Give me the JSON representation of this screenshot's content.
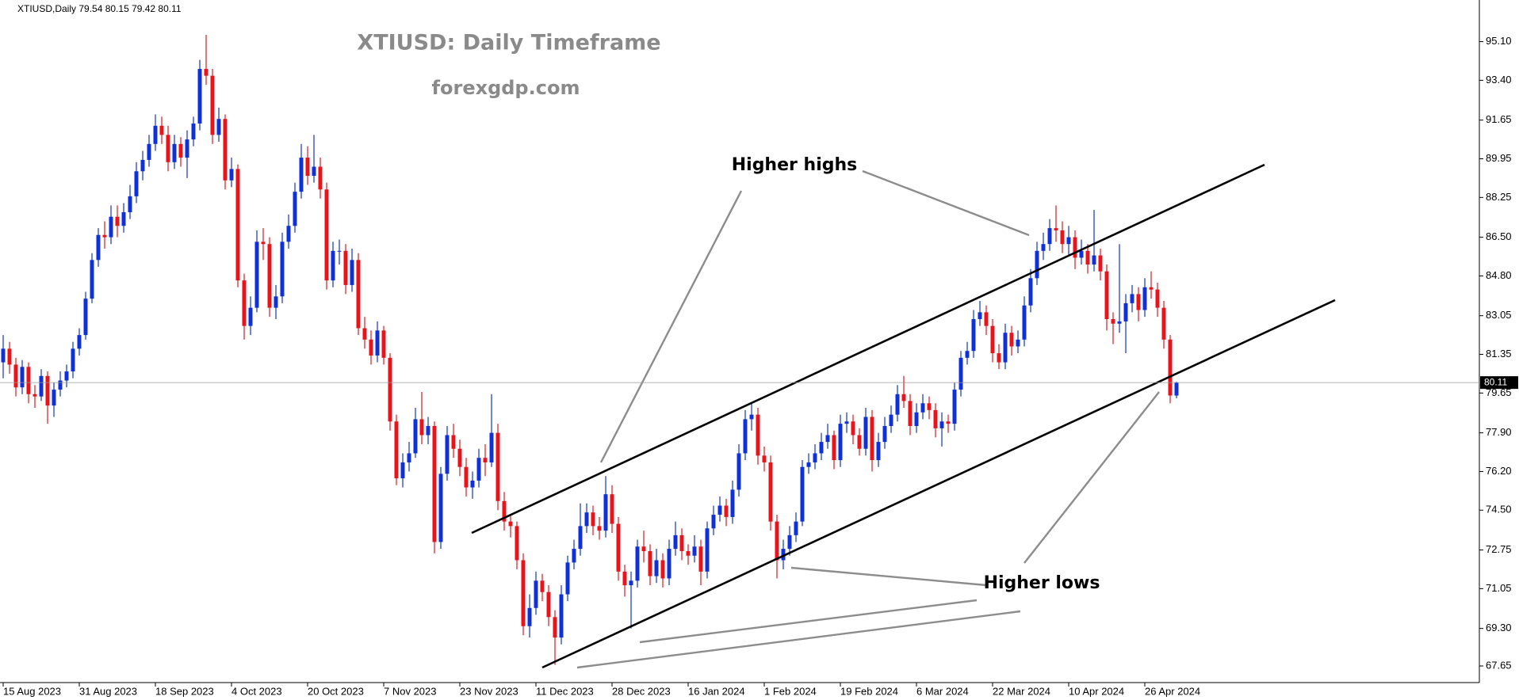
{
  "chart_data": {
    "type": "candlestick",
    "header": "XTIUSD,Daily  79.54 80.15 79.42 80.11",
    "title": "XTIUSD: Daily Timeframe",
    "subtitle": "forexgdp.com",
    "annotations": [
      "Higher highs",
      "Higher lows"
    ],
    "up_color": "#1030d8",
    "down_color": "#e8141b",
    "current_price": 80.11,
    "ylim": [
      66.92,
      96.93
    ],
    "yticks": [
      {
        "value": 95.1,
        "label": "95.10"
      },
      {
        "value": 93.4,
        "label": "93.40"
      },
      {
        "value": 91.65,
        "label": "91.65"
      },
      {
        "value": 89.95,
        "label": "89.95"
      },
      {
        "value": 88.25,
        "label": "88.25"
      },
      {
        "value": 86.5,
        "label": "86.50"
      },
      {
        "value": 84.8,
        "label": "84.80"
      },
      {
        "value": 83.05,
        "label": "83.05"
      },
      {
        "value": 81.35,
        "label": "81.35"
      },
      {
        "value": 79.65,
        "label": "79.65"
      },
      {
        "value": 77.9,
        "label": "77.90"
      },
      {
        "value": 76.2,
        "label": "76.20"
      },
      {
        "value": 74.5,
        "label": "74.50"
      },
      {
        "value": 72.75,
        "label": "72.75"
      },
      {
        "value": 71.05,
        "label": "71.05"
      },
      {
        "value": 69.3,
        "label": "69.30"
      },
      {
        "value": 67.65,
        "label": "67.65"
      }
    ],
    "categories": [
      "15 Aug 2023",
      null,
      null,
      null,
      null,
      null,
      null,
      null,
      null,
      null,
      null,
      null,
      "31 Aug 2023",
      null,
      null,
      null,
      null,
      null,
      null,
      null,
      null,
      null,
      null,
      null,
      "18 Sep 2023",
      null,
      null,
      null,
      null,
      null,
      null,
      null,
      null,
      null,
      null,
      null,
      "4 Oct 2023",
      null,
      null,
      null,
      null,
      null,
      null,
      null,
      null,
      null,
      null,
      null,
      "20 Oct 2023",
      null,
      null,
      null,
      null,
      null,
      null,
      null,
      null,
      null,
      null,
      null,
      "7 Nov 2023",
      null,
      null,
      null,
      null,
      null,
      null,
      null,
      null,
      null,
      null,
      null,
      "23 Nov 2023",
      null,
      null,
      null,
      null,
      null,
      null,
      null,
      null,
      null,
      null,
      null,
      "11 Dec 2023",
      null,
      null,
      null,
      null,
      null,
      null,
      null,
      null,
      null,
      null,
      null,
      "28 Dec 2023",
      null,
      null,
      null,
      null,
      null,
      null,
      null,
      null,
      null,
      null,
      null,
      "16 Jan 2024",
      null,
      null,
      null,
      null,
      null,
      null,
      null,
      null,
      null,
      null,
      null,
      "1 Feb 2024",
      null,
      null,
      null,
      null,
      null,
      null,
      null,
      null,
      null,
      null,
      null,
      "19 Feb 2024",
      null,
      null,
      null,
      null,
      null,
      null,
      null,
      null,
      null,
      null,
      null,
      "6 Mar 2024",
      null,
      null,
      null,
      null,
      null,
      null,
      null,
      null,
      null,
      null,
      null,
      "22 Mar 2024",
      null,
      null,
      null,
      null,
      null,
      null,
      null,
      null,
      null,
      null,
      null,
      "10 Apr 2024",
      null,
      null,
      null,
      null,
      null,
      null,
      null,
      null,
      null,
      null,
      null,
      "26 Apr 2024",
      null,
      null,
      null,
      null,
      null
    ],
    "ohlc": [
      [
        81.0,
        82.2,
        80.3,
        81.6
      ],
      [
        81.6,
        81.9,
        80.5,
        80.9
      ],
      [
        80.9,
        81.2,
        79.5,
        79.9
      ],
      [
        79.9,
        81.1,
        79.6,
        80.8
      ],
      [
        80.8,
        81.0,
        79.2,
        79.6
      ],
      [
        79.6,
        80.0,
        79.0,
        79.5
      ],
      [
        79.5,
        80.7,
        79.3,
        80.4
      ],
      [
        80.4,
        80.6,
        78.3,
        79.1
      ],
      [
        79.1,
        80.1,
        78.6,
        79.8
      ],
      [
        79.8,
        80.6,
        79.5,
        80.2
      ],
      [
        80.2,
        80.9,
        79.9,
        80.6
      ],
      [
        80.6,
        81.9,
        80.3,
        81.6
      ],
      [
        81.6,
        82.5,
        81.3,
        82.2
      ],
      [
        82.2,
        84.1,
        82.0,
        83.8
      ],
      [
        83.8,
        85.8,
        83.6,
        85.5
      ],
      [
        85.5,
        86.9,
        85.2,
        86.6
      ],
      [
        86.6,
        87.2,
        86.0,
        86.5
      ],
      [
        86.5,
        87.9,
        86.2,
        87.4
      ],
      [
        87.4,
        87.9,
        86.5,
        87.0
      ],
      [
        87.0,
        88.0,
        86.7,
        87.6
      ],
      [
        87.6,
        88.8,
        87.3,
        88.3
      ],
      [
        88.3,
        89.8,
        88.0,
        89.4
      ],
      [
        89.4,
        90.3,
        89.0,
        89.9
      ],
      [
        89.9,
        91.0,
        89.6,
        90.6
      ],
      [
        90.6,
        91.9,
        90.3,
        91.4
      ],
      [
        91.4,
        91.8,
        90.6,
        91.0
      ],
      [
        91.0,
        91.4,
        89.4,
        89.8
      ],
      [
        89.8,
        91.0,
        89.5,
        90.6
      ],
      [
        90.6,
        90.9,
        89.6,
        90.0
      ],
      [
        90.0,
        91.2,
        89.1,
        90.8
      ],
      [
        90.8,
        91.8,
        90.5,
        91.5
      ],
      [
        91.5,
        94.3,
        91.2,
        93.9
      ],
      [
        93.9,
        95.4,
        93.2,
        93.6
      ],
      [
        93.6,
        93.9,
        90.6,
        91.0
      ],
      [
        91.0,
        92.2,
        90.7,
        91.7
      ],
      [
        91.7,
        91.9,
        88.6,
        89.0
      ],
      [
        89.0,
        90.0,
        88.7,
        89.5
      ],
      [
        89.5,
        89.7,
        84.3,
        84.6
      ],
      [
        84.6,
        84.9,
        82.0,
        82.6
      ],
      [
        82.6,
        83.9,
        82.2,
        83.4
      ],
      [
        83.4,
        86.8,
        83.2,
        86.3
      ],
      [
        86.3,
        86.9,
        85.5,
        86.2
      ],
      [
        86.2,
        86.5,
        83.0,
        83.4
      ],
      [
        83.4,
        84.4,
        82.9,
        83.9
      ],
      [
        83.9,
        86.7,
        83.6,
        86.3
      ],
      [
        86.3,
        87.5,
        86.0,
        87.0
      ],
      [
        87.0,
        88.9,
        86.7,
        88.5
      ],
      [
        88.5,
        90.6,
        88.2,
        90.0
      ],
      [
        90.0,
        90.5,
        88.8,
        89.2
      ],
      [
        89.2,
        91.0,
        88.9,
        89.6
      ],
      [
        89.6,
        90.0,
        88.2,
        88.6
      ],
      [
        88.6,
        88.9,
        84.2,
        84.6
      ],
      [
        84.6,
        86.3,
        84.3,
        85.9
      ],
      [
        85.9,
        86.4,
        85.3,
        85.9
      ],
      [
        85.9,
        86.2,
        84.0,
        84.4
      ],
      [
        84.4,
        86.0,
        84.1,
        85.5
      ],
      [
        85.5,
        85.8,
        82.2,
        82.5
      ],
      [
        82.5,
        83.0,
        81.6,
        82.0
      ],
      [
        82.0,
        82.4,
        80.9,
        81.3
      ],
      [
        81.3,
        82.8,
        81.0,
        82.4
      ],
      [
        82.4,
        82.6,
        80.9,
        81.2
      ],
      [
        81.2,
        81.4,
        78.0,
        78.4
      ],
      [
        78.4,
        78.7,
        75.6,
        75.9
      ],
      [
        75.9,
        77.0,
        75.5,
        76.6
      ],
      [
        76.6,
        77.5,
        76.2,
        77.0
      ],
      [
        77.0,
        79.0,
        76.8,
        78.5
      ],
      [
        78.5,
        79.7,
        77.4,
        77.8
      ],
      [
        77.8,
        78.6,
        77.4,
        78.2
      ],
      [
        78.2,
        78.4,
        72.6,
        73.1
      ],
      [
        73.1,
        76.4,
        72.8,
        76.1
      ],
      [
        76.1,
        78.2,
        75.8,
        77.8
      ],
      [
        77.8,
        78.3,
        76.8,
        77.2
      ],
      [
        77.2,
        77.6,
        76.0,
        76.4
      ],
      [
        76.4,
        76.8,
        75.1,
        75.5
      ],
      [
        75.5,
        76.2,
        75.0,
        75.8
      ],
      [
        75.8,
        77.2,
        75.5,
        76.8
      ],
      [
        76.8,
        77.4,
        76.0,
        76.6
      ],
      [
        76.6,
        79.6,
        76.4,
        77.9
      ],
      [
        77.9,
        78.3,
        74.5,
        74.9
      ],
      [
        74.9,
        75.3,
        73.6,
        74.0
      ],
      [
        74.0,
        74.3,
        73.3,
        73.8
      ],
      [
        73.8,
        74.0,
        71.9,
        72.3
      ],
      [
        72.3,
        72.6,
        69.0,
        69.4
      ],
      [
        69.4,
        70.8,
        68.9,
        70.2
      ],
      [
        70.2,
        71.8,
        69.9,
        71.4
      ],
      [
        71.4,
        71.7,
        70.5,
        70.9
      ],
      [
        70.9,
        71.2,
        69.4,
        69.8
      ],
      [
        69.8,
        70.1,
        67.7,
        68.9
      ],
      [
        68.9,
        71.2,
        68.6,
        70.8
      ],
      [
        70.8,
        72.5,
        70.5,
        72.2
      ],
      [
        72.2,
        73.2,
        71.9,
        72.8
      ],
      [
        72.8,
        74.8,
        72.5,
        73.8
      ],
      [
        73.8,
        74.8,
        73.5,
        74.4
      ],
      [
        74.4,
        74.7,
        73.4,
        73.8
      ],
      [
        73.8,
        74.2,
        73.2,
        73.6
      ],
      [
        73.6,
        76.0,
        73.3,
        75.2
      ],
      [
        75.2,
        75.6,
        73.5,
        73.9
      ],
      [
        73.9,
        74.2,
        71.4,
        71.8
      ],
      [
        71.8,
        72.1,
        70.7,
        71.2
      ],
      [
        71.2,
        71.8,
        69.3,
        71.4
      ],
      [
        71.4,
        73.2,
        71.1,
        72.9
      ],
      [
        72.9,
        73.6,
        72.2,
        72.7
      ],
      [
        72.7,
        73.0,
        71.2,
        71.6
      ],
      [
        71.6,
        72.8,
        71.3,
        72.3
      ],
      [
        72.3,
        72.6,
        71.1,
        71.5
      ],
      [
        71.5,
        73.2,
        71.2,
        72.8
      ],
      [
        72.8,
        74.0,
        72.5,
        73.4
      ],
      [
        73.4,
        73.7,
        72.3,
        72.7
      ],
      [
        72.7,
        73.0,
        72.1,
        72.5
      ],
      [
        72.5,
        73.4,
        72.2,
        72.9
      ],
      [
        72.9,
        73.2,
        71.2,
        71.8
      ],
      [
        71.8,
        74.0,
        71.5,
        73.7
      ],
      [
        73.7,
        74.7,
        73.4,
        74.3
      ],
      [
        74.3,
        75.1,
        74.0,
        74.7
      ],
      [
        74.7,
        75.0,
        73.8,
        74.2
      ],
      [
        74.2,
        75.8,
        73.9,
        75.4
      ],
      [
        75.4,
        77.4,
        75.1,
        77.0
      ],
      [
        77.0,
        78.9,
        76.7,
        78.5
      ],
      [
        78.5,
        79.2,
        78.0,
        78.7
      ],
      [
        78.7,
        79.0,
        76.5,
        76.9
      ],
      [
        76.9,
        77.3,
        76.2,
        76.6
      ],
      [
        76.6,
        76.9,
        73.6,
        74.0
      ],
      [
        74.0,
        74.3,
        71.5,
        72.3
      ],
      [
        72.3,
        73.2,
        71.9,
        72.8
      ],
      [
        72.8,
        73.8,
        72.5,
        73.4
      ],
      [
        73.4,
        74.4,
        73.1,
        74.0
      ],
      [
        74.0,
        76.7,
        73.8,
        76.4
      ],
      [
        76.4,
        77.0,
        76.1,
        76.6
      ],
      [
        76.6,
        77.4,
        76.3,
        77.0
      ],
      [
        77.0,
        77.9,
        76.7,
        77.5
      ],
      [
        77.5,
        78.3,
        77.2,
        77.8
      ],
      [
        77.8,
        78.0,
        76.3,
        76.7
      ],
      [
        76.7,
        78.7,
        76.4,
        78.3
      ],
      [
        78.3,
        78.8,
        77.9,
        78.4
      ],
      [
        78.4,
        78.7,
        77.4,
        77.8
      ],
      [
        77.8,
        78.1,
        76.9,
        77.2
      ],
      [
        77.2,
        79.0,
        76.9,
        78.6
      ],
      [
        78.6,
        78.9,
        76.2,
        76.7
      ],
      [
        76.7,
        77.9,
        76.4,
        77.5
      ],
      [
        77.5,
        78.6,
        77.2,
        78.2
      ],
      [
        78.2,
        79.1,
        77.9,
        78.7
      ],
      [
        78.7,
        80.0,
        78.4,
        79.6
      ],
      [
        79.6,
        80.4,
        79.0,
        79.3
      ],
      [
        79.3,
        79.6,
        77.8,
        78.2
      ],
      [
        78.2,
        79.2,
        77.9,
        78.8
      ],
      [
        78.8,
        79.6,
        78.5,
        79.2
      ],
      [
        79.2,
        79.5,
        78.5,
        78.9
      ],
      [
        78.9,
        79.2,
        77.7,
        78.1
      ],
      [
        78.1,
        78.8,
        77.3,
        78.4
      ],
      [
        78.4,
        78.7,
        77.9,
        78.3
      ],
      [
        78.3,
        80.1,
        78.0,
        79.8
      ],
      [
        79.8,
        81.5,
        79.5,
        81.2
      ],
      [
        81.2,
        81.9,
        80.9,
        81.5
      ],
      [
        81.5,
        83.3,
        81.2,
        82.9
      ],
      [
        82.9,
        83.7,
        82.6,
        83.2
      ],
      [
        83.2,
        83.5,
        82.2,
        82.6
      ],
      [
        82.6,
        82.9,
        81.0,
        81.4
      ],
      [
        81.4,
        81.8,
        80.7,
        81.0
      ],
      [
        81.0,
        82.7,
        80.7,
        82.3
      ],
      [
        82.3,
        82.6,
        81.3,
        81.7
      ],
      [
        81.7,
        82.4,
        81.4,
        82.0
      ],
      [
        82.0,
        83.9,
        81.7,
        83.5
      ],
      [
        83.5,
        85.1,
        83.2,
        84.7
      ],
      [
        84.7,
        86.3,
        84.4,
        85.9
      ],
      [
        85.9,
        86.7,
        85.5,
        86.2
      ],
      [
        86.2,
        87.3,
        85.9,
        86.9
      ],
      [
        86.9,
        87.9,
        86.3,
        86.8
      ],
      [
        86.8,
        87.2,
        85.8,
        86.2
      ],
      [
        86.2,
        87.0,
        85.7,
        86.5
      ],
      [
        86.5,
        86.8,
        85.1,
        85.6
      ],
      [
        85.6,
        86.4,
        85.3,
        85.9
      ],
      [
        85.9,
        86.2,
        84.9,
        85.3
      ],
      [
        85.3,
        87.7,
        85.0,
        85.7
      ],
      [
        85.7,
        86.0,
        84.6,
        85.0
      ],
      [
        85.0,
        85.3,
        82.4,
        82.9
      ],
      [
        82.9,
        83.2,
        81.8,
        82.7
      ],
      [
        82.7,
        86.2,
        82.3,
        82.8
      ],
      [
        82.8,
        84.0,
        81.4,
        83.6
      ],
      [
        83.6,
        84.4,
        83.2,
        84.0
      ],
      [
        84.0,
        84.3,
        82.8,
        83.3
      ],
      [
        83.3,
        84.7,
        83.0,
        84.3
      ],
      [
        84.3,
        85.0,
        83.8,
        84.2
      ],
      [
        84.2,
        84.5,
        83.0,
        83.4
      ],
      [
        83.4,
        83.7,
        81.6,
        82.0
      ],
      [
        82.0,
        82.2,
        79.2,
        79.54
      ],
      [
        79.54,
        80.15,
        79.42,
        80.11
      ]
    ]
  }
}
